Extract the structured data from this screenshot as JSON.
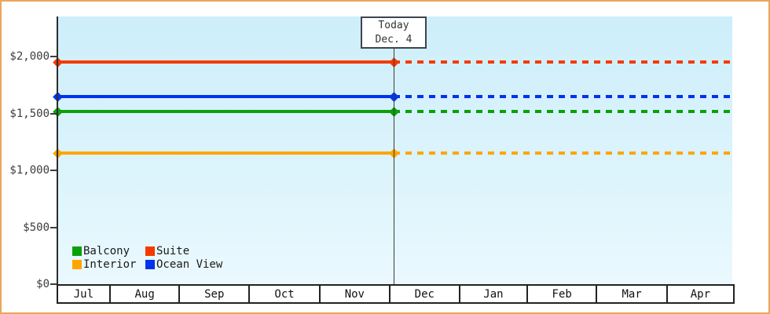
{
  "page": {
    "border_color": "#e9a75b",
    "background_color": "#ffffff",
    "plot_background_top": "#cdeefa",
    "plot_background_bottom": "#eaf9fe"
  },
  "today_marker": {
    "line1": "Today",
    "line2": "Dec. 4"
  },
  "legend": {
    "items": [
      {
        "label": "Balcony",
        "color": "#0aa00a"
      },
      {
        "label": "Suite",
        "color": "#f43a00"
      },
      {
        "label": "Interior",
        "color": "#ffa502"
      },
      {
        "label": "Ocean View",
        "color": "#0033ee"
      }
    ]
  },
  "chart_data": {
    "type": "line",
    "x": [
      "Jul",
      "Aug",
      "Sep",
      "Oct",
      "Nov",
      "Dec",
      "Jan",
      "Feb",
      "Mar",
      "Apr"
    ],
    "series": [
      {
        "name": "Suite",
        "color": "#f43a00",
        "value": 1950,
        "style_before_today": "solid",
        "style_after_today": "dotted"
      },
      {
        "name": "Ocean View",
        "color": "#0033ee",
        "value": 1645,
        "style_before_today": "solid",
        "style_after_today": "dotted"
      },
      {
        "name": "Balcony",
        "color": "#0aa00a",
        "value": 1515,
        "style_before_today": "solid",
        "style_after_today": "dotted"
      },
      {
        "name": "Interior",
        "color": "#ffa502",
        "value": 1150,
        "style_before_today": "solid",
        "style_after_today": "dotted"
      }
    ],
    "yaxis": {
      "ticks": [
        {
          "label": "$0",
          "value": 0
        },
        {
          "label": "$500",
          "value": 500
        },
        {
          "label": "$1,000",
          "value": 1000
        },
        {
          "label": "$1,500",
          "value": 1500
        },
        {
          "label": "$2,000",
          "value": 2000
        }
      ],
      "ylim": [
        0,
        2350
      ]
    },
    "annotations": [
      {
        "text": "Today Dec. 4",
        "x": "Dec 4"
      }
    ],
    "grid": false,
    "legend_position": "inside-bottom-left",
    "marker_shape": "diamond",
    "markers_at": [
      "series-start",
      "today"
    ]
  }
}
